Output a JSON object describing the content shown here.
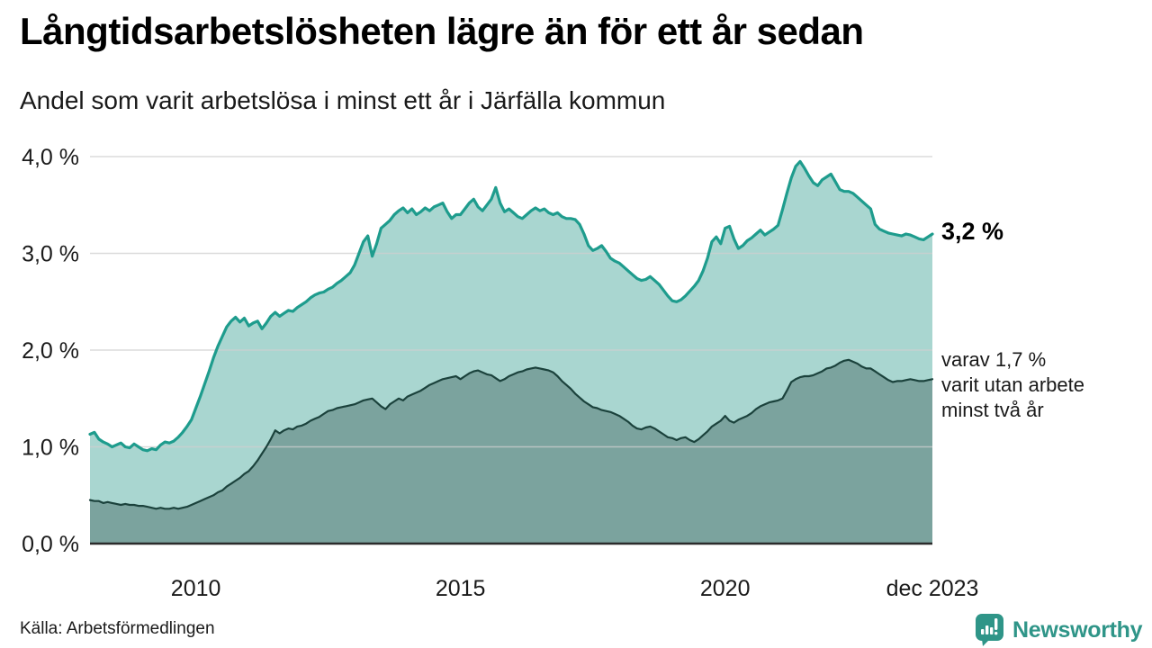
{
  "header": {
    "title": "Långtidsarbetslösheten lägre än för ett år sedan",
    "subtitle": "Andel som varit arbetslösa i minst ett år i Järfälla kommun"
  },
  "annotations": {
    "last_total_label": "3,2 %",
    "subset_label_line1": "varav 1,7 %",
    "subset_label_line2": "varit utan arbete",
    "subset_label_line3": "minst två år"
  },
  "footer": {
    "source": "Källa: Arbetsförmedlingen",
    "brand_name": "Newsworthy",
    "brand_icon": "speech-bubble-bar-chart-icon"
  },
  "colors": {
    "total_line": "#1E9C8D",
    "total_fill": "#A9D6D0",
    "subset_line": "#1B423C",
    "subset_fill": "#7BA39E",
    "gridline": "#CFCFCF",
    "axis_line": "#2B2B2B",
    "brand_teal": "#2F9588",
    "text": "#1a1a1a"
  },
  "chart_data": {
    "type": "area",
    "title": "Långtidsarbetslösheten lägre än för ett år sedan",
    "subtitle": "Andel som varit arbetslösa i minst ett år i Järfälla kommun",
    "unit": "%",
    "frequency": "monthly",
    "x_start_year": 2008.0,
    "x_end_year": 2023.9167,
    "ylim": [
      0.0,
      4.0
    ],
    "grid": "horizontal",
    "legend_position": "right-annotations",
    "y_ticks": [
      {
        "value": 4.0,
        "label": "4,0 %"
      },
      {
        "value": 3.0,
        "label": "3,0 %"
      },
      {
        "value": 2.0,
        "label": "2,0 %"
      },
      {
        "value": 1.0,
        "label": "1,0 %"
      },
      {
        "value": 0.0,
        "label": "0,0 %"
      }
    ],
    "x_ticks": [
      {
        "year": 2010.0,
        "label": "2010"
      },
      {
        "year": 2015.0,
        "label": "2015"
      },
      {
        "year": 2020.0,
        "label": "2020"
      },
      {
        "year": 2023.9167,
        "label": "dec 2023"
      }
    ],
    "series": [
      {
        "name": "Andel arbetslösa minst ett år",
        "last_value": 3.2,
        "line_color": "#1E9C8D",
        "fill_color": "#A9D6D0",
        "line_width": 3.2,
        "values": [
          1.13,
          1.15,
          1.08,
          1.05,
          1.03,
          1.0,
          1.02,
          1.04,
          1.0,
          0.99,
          1.03,
          1.0,
          0.97,
          0.96,
          0.98,
          0.97,
          1.02,
          1.05,
          1.04,
          1.06,
          1.1,
          1.15,
          1.21,
          1.28,
          1.4,
          1.52,
          1.65,
          1.78,
          1.92,
          2.04,
          2.14,
          2.24,
          2.3,
          2.34,
          2.29,
          2.33,
          2.25,
          2.28,
          2.3,
          2.22,
          2.28,
          2.35,
          2.39,
          2.35,
          2.38,
          2.41,
          2.4,
          2.44,
          2.47,
          2.5,
          2.54,
          2.57,
          2.59,
          2.6,
          2.63,
          2.65,
          2.69,
          2.72,
          2.76,
          2.8,
          2.88,
          3.0,
          3.12,
          3.18,
          2.97,
          3.1,
          3.26,
          3.3,
          3.34,
          3.4,
          3.44,
          3.47,
          3.42,
          3.46,
          3.4,
          3.43,
          3.47,
          3.44,
          3.48,
          3.5,
          3.52,
          3.43,
          3.36,
          3.4,
          3.4,
          3.46,
          3.52,
          3.56,
          3.48,
          3.44,
          3.5,
          3.56,
          3.68,
          3.52,
          3.43,
          3.46,
          3.42,
          3.38,
          3.36,
          3.4,
          3.44,
          3.47,
          3.44,
          3.46,
          3.42,
          3.4,
          3.42,
          3.38,
          3.36,
          3.36,
          3.35,
          3.3,
          3.2,
          3.08,
          3.03,
          3.05,
          3.08,
          3.02,
          2.95,
          2.92,
          2.9,
          2.86,
          2.82,
          2.78,
          2.74,
          2.72,
          2.73,
          2.76,
          2.72,
          2.68,
          2.62,
          2.56,
          2.51,
          2.5,
          2.52,
          2.56,
          2.61,
          2.66,
          2.72,
          2.82,
          2.95,
          3.12,
          3.17,
          3.1,
          3.26,
          3.28,
          3.15,
          3.05,
          3.08,
          3.13,
          3.16,
          3.2,
          3.24,
          3.19,
          3.22,
          3.25,
          3.29,
          3.45,
          3.62,
          3.78,
          3.9,
          3.95,
          3.88,
          3.8,
          3.73,
          3.7,
          3.76,
          3.79,
          3.82,
          3.74,
          3.66,
          3.64,
          3.64,
          3.62,
          3.58,
          3.54,
          3.5,
          3.46,
          3.3,
          3.25,
          3.23,
          3.21,
          3.2,
          3.19,
          3.18,
          3.2,
          3.19,
          3.17,
          3.15,
          3.14,
          3.17,
          3.2
        ]
      },
      {
        "name": "varav arbetslösa minst två år",
        "last_value": 1.7,
        "line_color": "#1B423C",
        "fill_color": "#7BA39E",
        "line_width": 2.2,
        "values": [
          0.45,
          0.44,
          0.44,
          0.42,
          0.43,
          0.42,
          0.41,
          0.4,
          0.41,
          0.4,
          0.4,
          0.39,
          0.39,
          0.38,
          0.37,
          0.36,
          0.37,
          0.36,
          0.36,
          0.37,
          0.36,
          0.37,
          0.38,
          0.4,
          0.42,
          0.44,
          0.46,
          0.48,
          0.5,
          0.53,
          0.55,
          0.59,
          0.62,
          0.65,
          0.68,
          0.72,
          0.75,
          0.8,
          0.86,
          0.93,
          1.0,
          1.08,
          1.17,
          1.14,
          1.17,
          1.19,
          1.18,
          1.21,
          1.22,
          1.24,
          1.27,
          1.29,
          1.31,
          1.34,
          1.37,
          1.38,
          1.4,
          1.41,
          1.42,
          1.43,
          1.44,
          1.46,
          1.48,
          1.49,
          1.5,
          1.46,
          1.42,
          1.39,
          1.44,
          1.47,
          1.5,
          1.48,
          1.52,
          1.54,
          1.56,
          1.58,
          1.61,
          1.64,
          1.66,
          1.68,
          1.7,
          1.71,
          1.72,
          1.73,
          1.7,
          1.73,
          1.76,
          1.78,
          1.79,
          1.77,
          1.75,
          1.74,
          1.71,
          1.68,
          1.7,
          1.73,
          1.75,
          1.77,
          1.78,
          1.8,
          1.81,
          1.82,
          1.81,
          1.8,
          1.79,
          1.77,
          1.73,
          1.68,
          1.64,
          1.6,
          1.55,
          1.51,
          1.47,
          1.44,
          1.41,
          1.4,
          1.38,
          1.37,
          1.36,
          1.34,
          1.32,
          1.29,
          1.26,
          1.22,
          1.19,
          1.18,
          1.2,
          1.21,
          1.19,
          1.16,
          1.13,
          1.1,
          1.09,
          1.07,
          1.09,
          1.1,
          1.07,
          1.05,
          1.08,
          1.12,
          1.16,
          1.21,
          1.24,
          1.27,
          1.32,
          1.27,
          1.25,
          1.28,
          1.3,
          1.32,
          1.35,
          1.39,
          1.42,
          1.44,
          1.46,
          1.47,
          1.48,
          1.5,
          1.58,
          1.67,
          1.7,
          1.72,
          1.73,
          1.73,
          1.74,
          1.76,
          1.78,
          1.81,
          1.82,
          1.84,
          1.87,
          1.89,
          1.9,
          1.88,
          1.86,
          1.83,
          1.81,
          1.81,
          1.78,
          1.75,
          1.72,
          1.69,
          1.67,
          1.68,
          1.68,
          1.69,
          1.7,
          1.69,
          1.68,
          1.68,
          1.69,
          1.7
        ]
      }
    ]
  }
}
